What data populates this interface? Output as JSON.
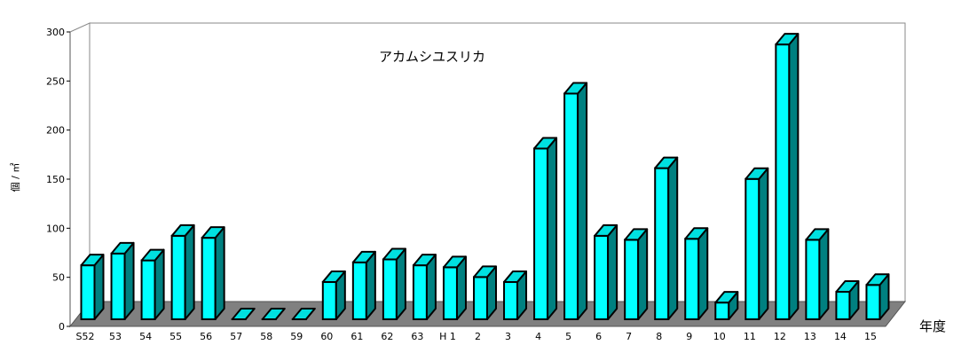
{
  "chart_data": {
    "type": "bar",
    "title": "アカムシユスリカ",
    "xlabel": "年度",
    "ylabel": "個 / ㎡",
    "categories": [
      "S52",
      "53",
      "54",
      "55",
      "56",
      "57",
      "58",
      "59",
      "60",
      "61",
      "62",
      "63",
      "H 1",
      "2",
      "3",
      "4",
      "5",
      "6",
      "7",
      "8",
      "9",
      "10",
      "11",
      "12",
      "13",
      "14",
      "15"
    ],
    "values": [
      55,
      67,
      60,
      85,
      83,
      0,
      0,
      0,
      38,
      58,
      61,
      55,
      53,
      43,
      38,
      174,
      230,
      85,
      81,
      154,
      82,
      17,
      143,
      280,
      81,
      28,
      35
    ],
    "ylim": [
      0,
      300
    ],
    "yticks": [
      0,
      50,
      100,
      150,
      200,
      250,
      300
    ],
    "grid": false,
    "colors": {
      "bar_front": "#00ffff",
      "bar_top": "#00e0e0",
      "bar_side": "#008080",
      "floor": "#808080",
      "wall": "#ffffff",
      "outline": "#000000"
    }
  }
}
